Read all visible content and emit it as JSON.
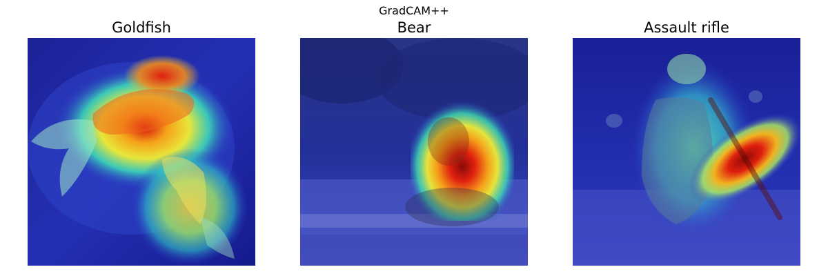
{
  "figure": {
    "title": "GradCAM++"
  },
  "panels": [
    {
      "title": "Goldfish",
      "subject": "goldfish-heatmap-image"
    },
    {
      "title": "Bear",
      "subject": "bear-heatmap-image"
    },
    {
      "title": "Assault rifle",
      "subject": "soldier-rifle-heatmap-image"
    }
  ],
  "colors": {
    "background": "#ffffff",
    "heatmap_low": "#1a1ea0",
    "heatmap_mid": "#37e0b0",
    "heatmap_high": "#e5190d"
  }
}
